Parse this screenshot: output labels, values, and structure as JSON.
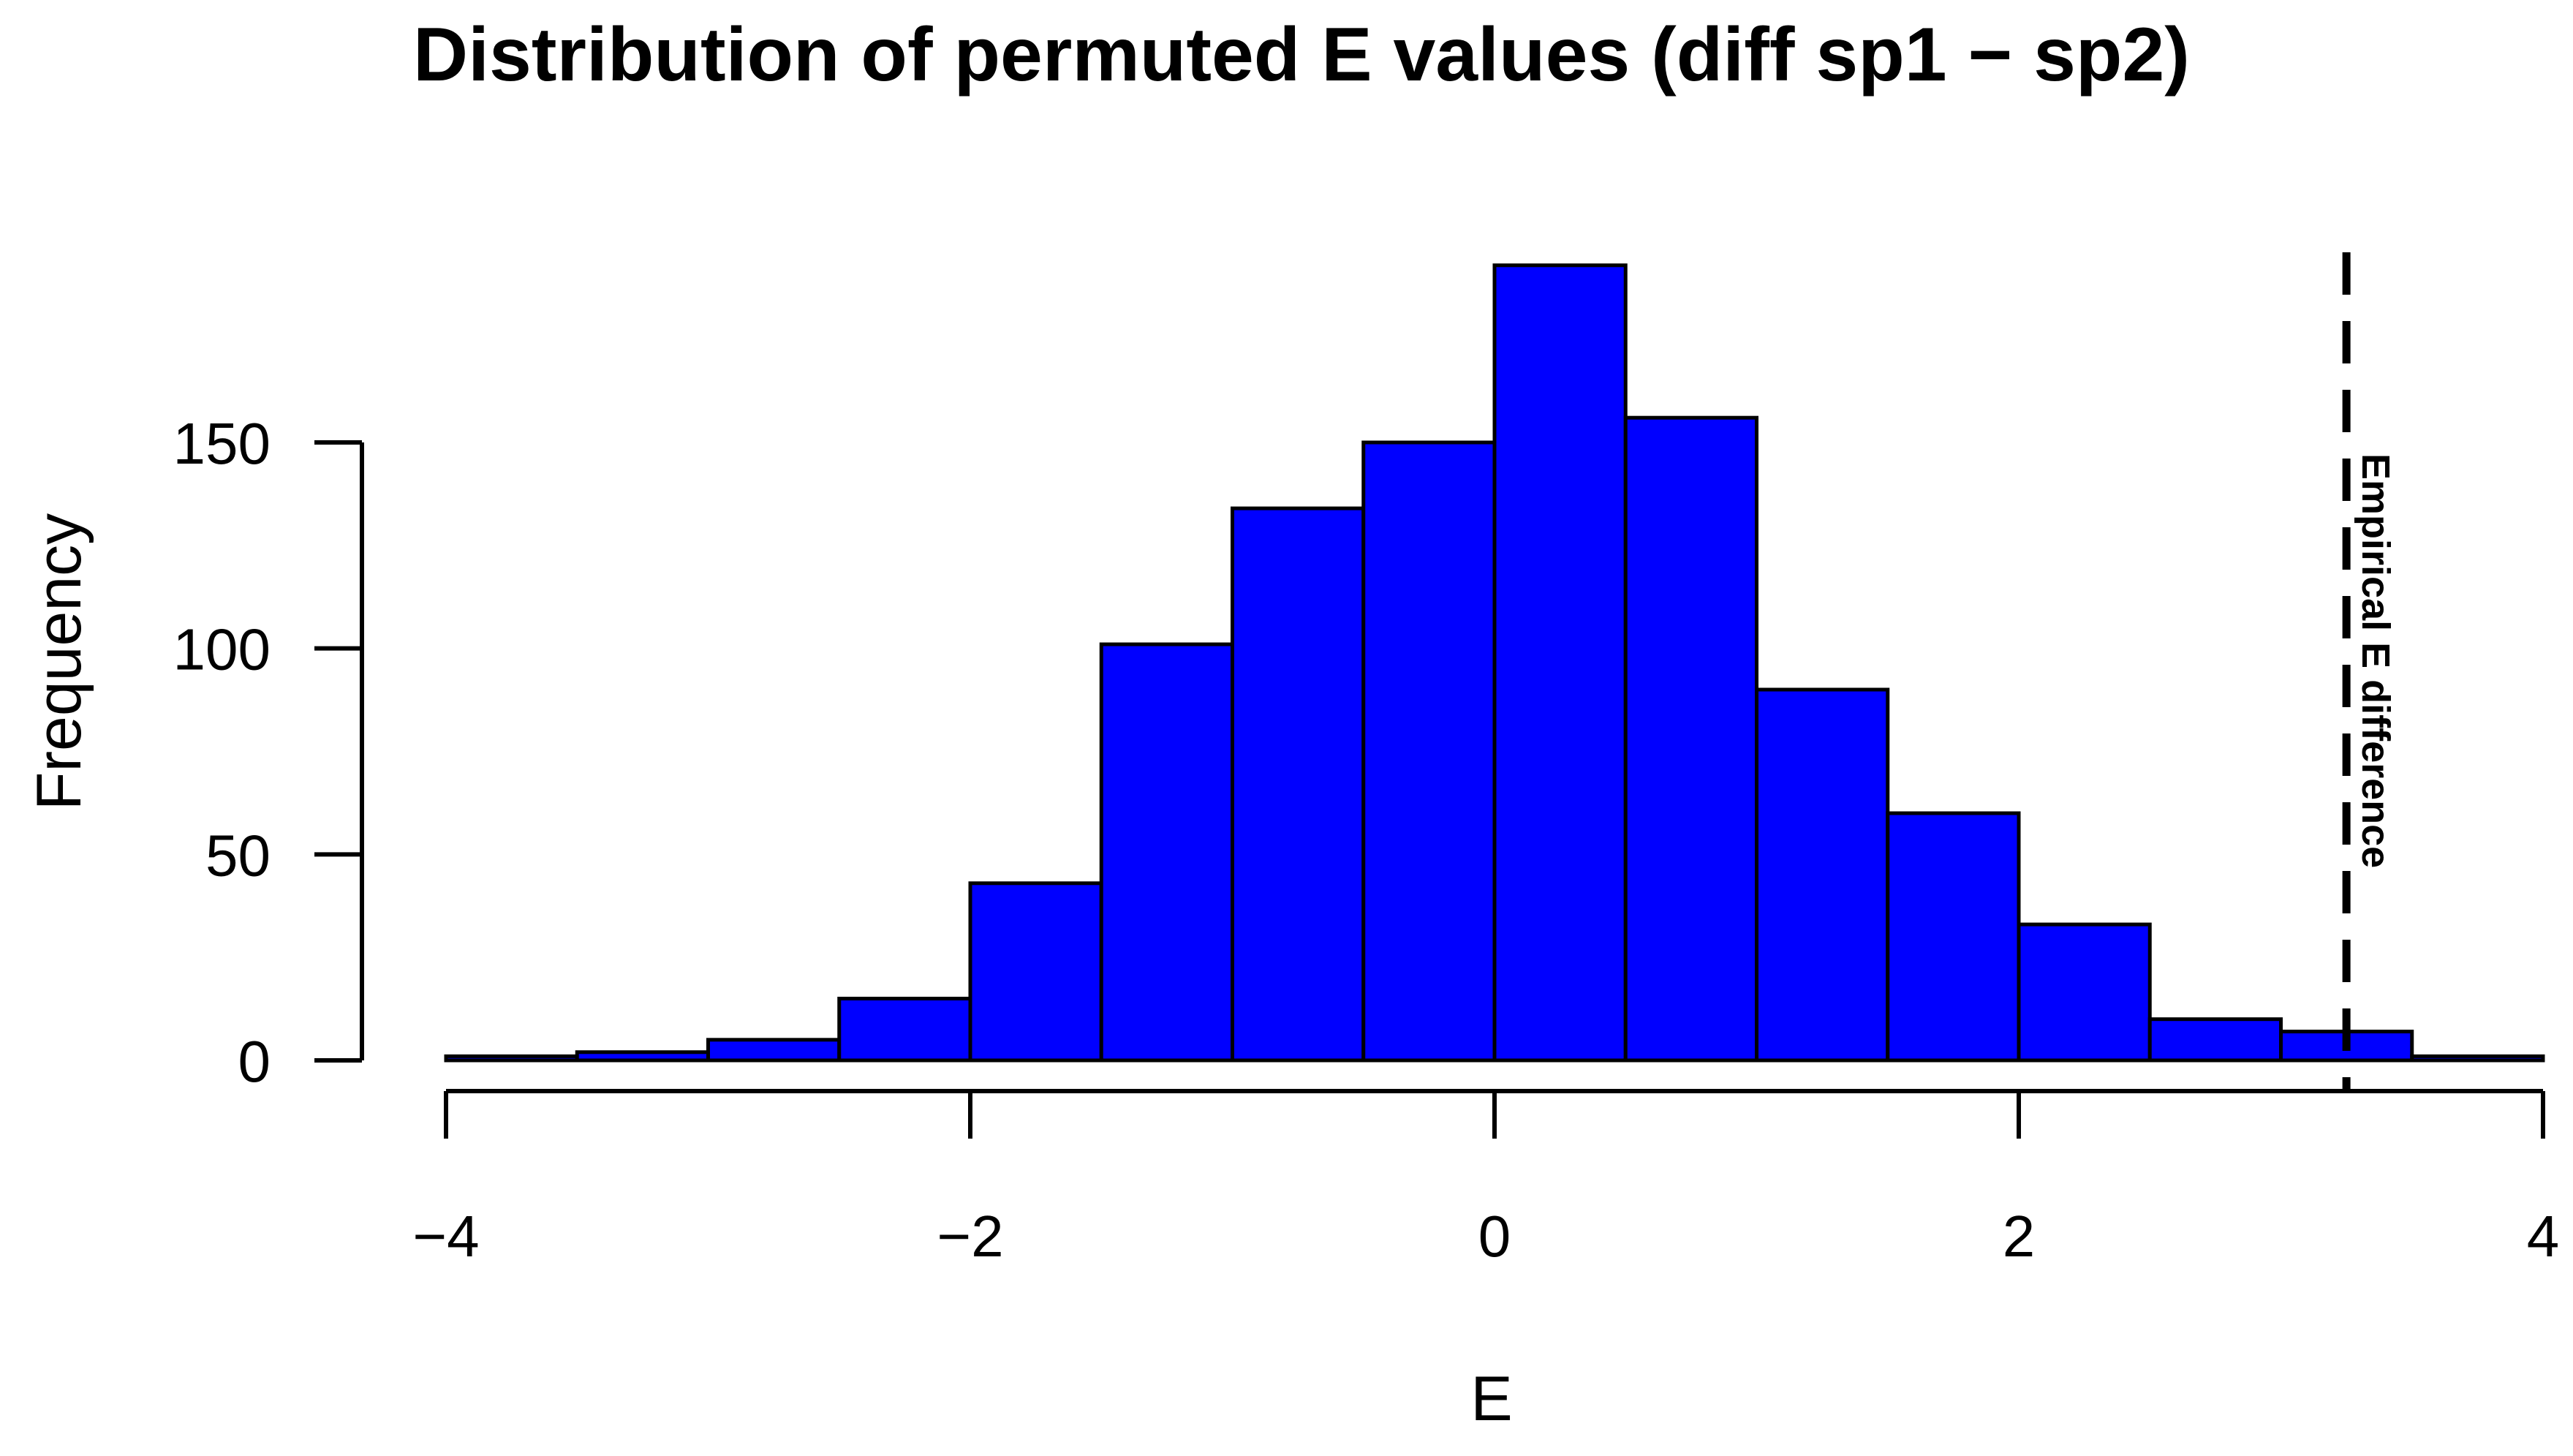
{
  "chart_data": {
    "type": "bar",
    "subtype": "histogram",
    "title": "Distribution of permuted E values (diff sp1 − sp2)",
    "xlabel": "E",
    "ylabel": "Frequency",
    "bins": [
      {
        "x0": -4.0,
        "x1": -3.5,
        "count": 1
      },
      {
        "x0": -3.5,
        "x1": -3.0,
        "count": 2
      },
      {
        "x0": -3.0,
        "x1": -2.5,
        "count": 5
      },
      {
        "x0": -2.5,
        "x1": -2.0,
        "count": 15
      },
      {
        "x0": -2.0,
        "x1": -1.5,
        "count": 43
      },
      {
        "x0": -1.5,
        "x1": -1.0,
        "count": 101
      },
      {
        "x0": -1.0,
        "x1": -0.5,
        "count": 134
      },
      {
        "x0": -0.5,
        "x1": 0.0,
        "count": 150
      },
      {
        "x0": 0.0,
        "x1": 0.5,
        "count": 193
      },
      {
        "x0": 0.5,
        "x1": 1.0,
        "count": 156
      },
      {
        "x0": 1.0,
        "x1": 1.5,
        "count": 90
      },
      {
        "x0": 1.5,
        "x1": 2.0,
        "count": 60
      },
      {
        "x0": 2.0,
        "x1": 2.5,
        "count": 33
      },
      {
        "x0": 2.5,
        "x1": 3.0,
        "count": 10
      },
      {
        "x0": 3.0,
        "x1": 3.5,
        "count": 7
      },
      {
        "x0": 3.5,
        "x1": 4.0,
        "count": 1
      }
    ],
    "xlim": [
      -4,
      4
    ],
    "ylim": [
      0,
      193
    ],
    "x_ticks": [
      -4,
      -2,
      0,
      2,
      4
    ],
    "x_tick_labels": [
      "−4",
      "−2",
      "0",
      "2",
      "4"
    ],
    "y_ticks": [
      0,
      50,
      100,
      150
    ],
    "y_tick_labels": [
      "0",
      "50",
      "100",
      "150"
    ],
    "reference_line": {
      "x": 3.25,
      "style": "dashed",
      "label": "Empirical E difference"
    },
    "colors": {
      "bar_fill": "#0000FF",
      "bar_stroke": "#000000",
      "axis": "#000000"
    },
    "grid": false,
    "legend": "none"
  }
}
